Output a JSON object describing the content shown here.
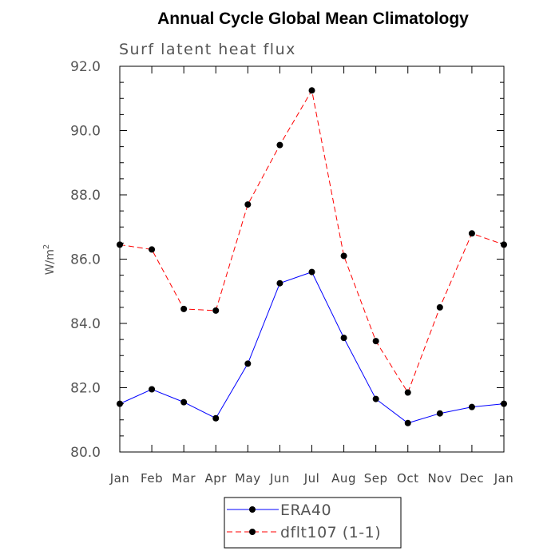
{
  "chart_data": {
    "type": "line",
    "title": "Annual Cycle Global Mean Climatology",
    "subtitle": "Surf latent heat flux",
    "xlabel": "",
    "ylabel": "W/m",
    "ylabel_superscript": "2",
    "categories": [
      "Jan",
      "Feb",
      "Mar",
      "Apr",
      "May",
      "Jun",
      "Jul",
      "Aug",
      "Sep",
      "Oct",
      "Nov",
      "Dec",
      "Jan"
    ],
    "ylim": [
      80.0,
      92.0
    ],
    "yticks": [
      "80.0",
      "82.0",
      "84.0",
      "86.0",
      "88.0",
      "90.0",
      "92.0"
    ],
    "grid": false,
    "legend_position": "bottom-center",
    "series": [
      {
        "name": "ERA40",
        "color": "#0000ff",
        "line_style": "solid",
        "marker": "filled-circle",
        "values": [
          81.5,
          81.95,
          81.55,
          81.05,
          82.75,
          85.25,
          85.6,
          83.55,
          81.65,
          80.9,
          81.2,
          81.4,
          81.5
        ]
      },
      {
        "name": "dflt107 (1-1)",
        "color": "#ff0000",
        "line_style": "dashed",
        "marker": "filled-circle",
        "values": [
          86.45,
          86.3,
          84.45,
          84.4,
          87.7,
          89.55,
          91.25,
          86.1,
          83.45,
          81.85,
          84.5,
          86.8,
          86.45
        ]
      }
    ]
  }
}
